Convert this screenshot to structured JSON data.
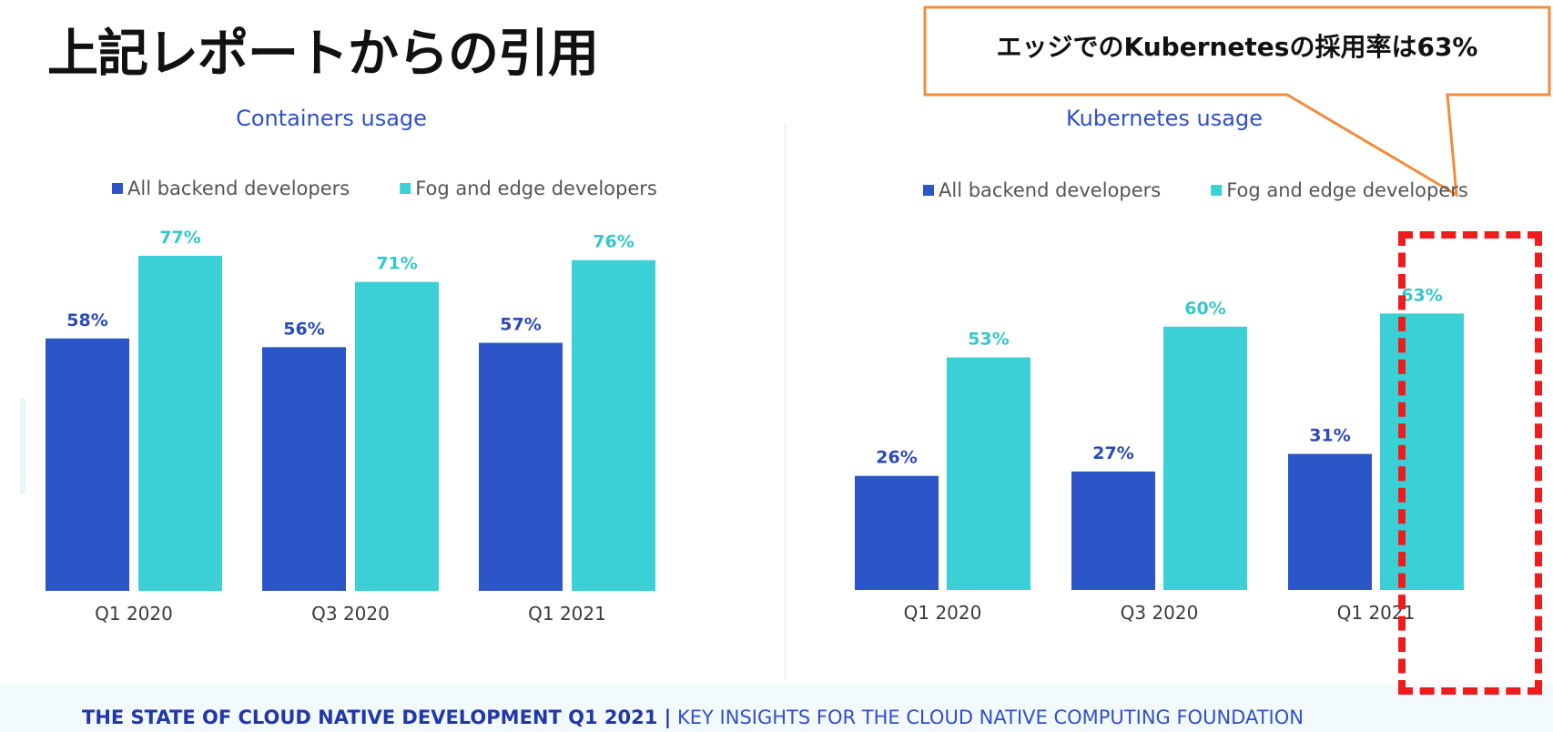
{
  "title": "上記レポートからの引用",
  "callout": "エッジでのKubernetesの採用率は63%",
  "colors": {
    "all_backend": "#2c55c8",
    "fog_edge": "#3bcfd6",
    "title_blue": "#2f50c8",
    "highlight": "#ee1c1c",
    "callout_border": "#f28b3c"
  },
  "chart_data": [
    {
      "type": "bar",
      "title": "Containers usage",
      "categories": [
        "Q1 2020",
        "Q3 2020",
        "Q1 2021"
      ],
      "series": [
        {
          "name": "All backend developers",
          "values": [
            58,
            56,
            57
          ],
          "labels": [
            "58%",
            "56%",
            "57%"
          ]
        },
        {
          "name": "Fog and edge developers",
          "values": [
            77,
            71,
            76
          ],
          "labels": [
            "77%",
            "71%",
            "76%"
          ]
        }
      ],
      "ylim": [
        0,
        100
      ],
      "legend_position": "top",
      "grid": false
    },
    {
      "type": "bar",
      "title": "Kubernetes usage",
      "categories": [
        "Q1 2020",
        "Q3 2020",
        "Q1 2021"
      ],
      "series": [
        {
          "name": "All backend developers",
          "values": [
            26,
            27,
            31
          ],
          "labels": [
            "26%",
            "27%",
            "31%"
          ]
        },
        {
          "name": "Fog and edge developers",
          "values": [
            53,
            60,
            63
          ],
          "labels": [
            "53%",
            "60%",
            "63%"
          ]
        }
      ],
      "ylim": [
        0,
        100
      ],
      "legend_position": "top",
      "grid": false
    }
  ],
  "footer": {
    "bold": "THE STATE OF CLOUD NATIVE DEVELOPMENT Q1 2021 |",
    "normal": " KEY INSIGHTS  FOR THE CLOUD NATIVE COMPUTING FOUNDATION"
  }
}
